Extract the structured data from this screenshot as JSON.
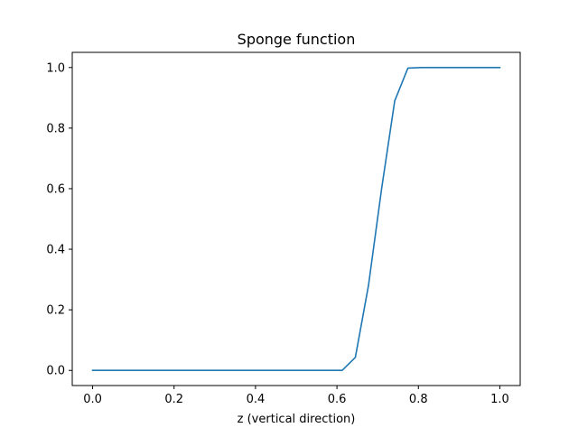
{
  "chart_data": {
    "type": "line",
    "title": "Sponge function",
    "xlabel": "z (vertical direction)",
    "ylabel": "",
    "xlim": [
      -0.05,
      1.05
    ],
    "ylim": [
      -0.05,
      1.05
    ],
    "xticks": [
      0.0,
      0.2,
      0.4,
      0.6,
      0.8,
      1.0
    ],
    "xtick_labels": [
      "0.0",
      "0.2",
      "0.4",
      "0.6",
      "0.8",
      "1.0"
    ],
    "yticks": [
      0.0,
      0.2,
      0.4,
      0.6,
      0.8,
      1.0
    ],
    "ytick_labels": [
      "0.0",
      "0.2",
      "0.4",
      "0.6",
      "0.8",
      "1.0"
    ],
    "grid": false,
    "legend": "none",
    "series": [
      {
        "color": "#1f77b4",
        "x": [
          0.0,
          0.0323,
          0.0645,
          0.0968,
          0.129,
          0.1613,
          0.1935,
          0.2258,
          0.2581,
          0.2903,
          0.3226,
          0.3548,
          0.3871,
          0.4194,
          0.4516,
          0.4839,
          0.5161,
          0.5484,
          0.5806,
          0.6129,
          0.6452,
          0.6774,
          0.7097,
          0.7419,
          0.7742,
          0.8065,
          0.8387,
          0.871,
          0.9032,
          0.9355,
          0.9677,
          1.0
        ],
        "y": [
          0.0,
          0.0,
          0.0,
          0.0,
          0.0,
          0.0,
          0.0,
          0.0,
          0.0,
          0.0,
          0.0,
          0.0,
          0.0,
          0.0,
          0.0,
          0.0,
          0.0,
          0.0,
          0.0,
          0.0,
          0.043,
          0.28,
          0.6,
          0.89,
          0.998,
          1.0,
          1.0,
          1.0,
          1.0,
          1.0,
          1.0,
          1.0
        ]
      }
    ]
  }
}
